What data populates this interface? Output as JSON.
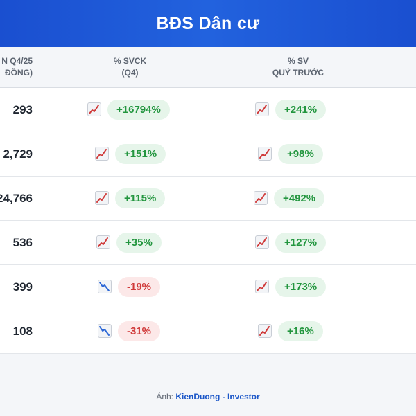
{
  "header": {
    "title": "BĐS Dân cư"
  },
  "columns": {
    "revenue": [
      "N Q4/25",
      "ĐỒNG)"
    ],
    "yoy": [
      "% SVCK",
      "(Q4)"
    ],
    "qoq": [
      "% SV",
      "QUÝ TRƯỚC"
    ]
  },
  "rows": [
    {
      "revenue": "293",
      "yoy": "+16794%",
      "yoy_trend": "chart-up-icon",
      "qoq": "+241%",
      "qoq_trend": "chart-up-icon"
    },
    {
      "revenue": "2,729",
      "yoy": "+151%",
      "yoy_trend": "chart-up-icon",
      "qoq": "+98%",
      "qoq_trend": "chart-up-icon"
    },
    {
      "revenue": "24,766",
      "yoy": "+115%",
      "yoy_trend": "chart-up-icon",
      "qoq": "+492%",
      "qoq_trend": "chart-up-icon"
    },
    {
      "revenue": "536",
      "yoy": "+35%",
      "yoy_trend": "chart-up-icon",
      "qoq": "+127%",
      "qoq_trend": "chart-up-icon"
    },
    {
      "revenue": "399",
      "yoy": "-19%",
      "yoy_trend": "chart-down-icon",
      "qoq": "+173%",
      "qoq_trend": "chart-up-icon"
    },
    {
      "revenue": "108",
      "yoy": "-31%",
      "yoy_trend": "chart-down-icon",
      "qoq": "+16%",
      "qoq_trend": "chart-up-icon"
    }
  ],
  "footer": {
    "prefix": "Ảnh:",
    "author": "KienDuong - Investor"
  },
  "colors": {
    "header": "#1a4fd0",
    "up": "#23963f",
    "down": "#d03a3a",
    "up_bg": "#e6f5ea",
    "down_bg": "#fce8e8"
  }
}
